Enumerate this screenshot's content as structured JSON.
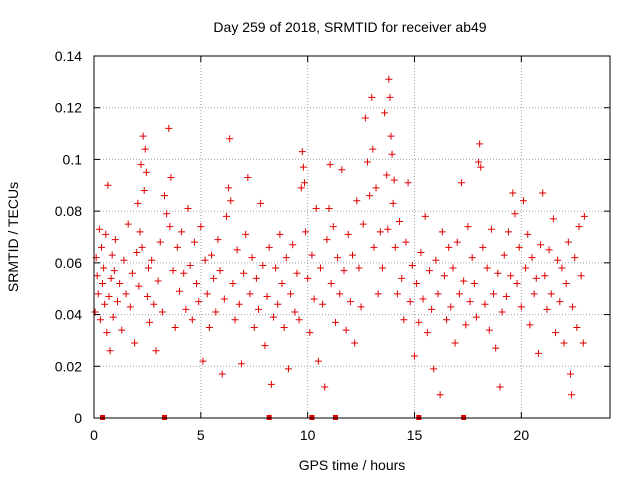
{
  "chart_data": {
    "type": "scatter",
    "title": "Day 259 of 2018, SRMTID for receiver ab49",
    "xlabel": "GPS time / hours",
    "ylabel": "SRMTID / TECUs",
    "xlim": [
      0,
      24.15
    ],
    "ylim": [
      0,
      0.14
    ],
    "grid": true,
    "marker": "+",
    "xticks": [
      0,
      5,
      10,
      15,
      20
    ],
    "xtick_labels": [
      "0",
      "5",
      "10",
      "15",
      "20"
    ],
    "yticks": [
      0,
      0.02,
      0.04,
      0.06,
      0.08,
      0.1,
      0.12,
      0.14
    ],
    "ytick_labels": [
      "0",
      "0.02",
      "0.04",
      "0.06",
      "0.08",
      "0.1",
      "0.12",
      "0.14"
    ],
    "color": "#e00000",
    "series": [
      {
        "name": "SRMTID",
        "points": [
          [
            0.05,
            0.041
          ],
          [
            0.1,
            0.062
          ],
          [
            0.15,
            0.055
          ],
          [
            0.2,
            0.048
          ],
          [
            0.25,
            0.073
          ],
          [
            0.3,
            0.038
          ],
          [
            0.35,
            0.066
          ],
          [
            0.4,
            0.052
          ],
          [
            0.45,
            0.058
          ],
          [
            0.5,
            0.044
          ],
          [
            0.55,
            0.071
          ],
          [
            0.6,
            0.033
          ],
          [
            0.65,
            0.09
          ],
          [
            0.7,
            0.047
          ],
          [
            0.75,
            0.026
          ],
          [
            0.8,
            0.054
          ],
          [
            0.85,
            0.063
          ],
          [
            0.9,
            0.039
          ],
          [
            0.95,
            0.057
          ],
          [
            1.0,
            0.069
          ],
          [
            1.1,
            0.045
          ],
          [
            1.2,
            0.052
          ],
          [
            1.3,
            0.034
          ],
          [
            1.4,
            0.061
          ],
          [
            1.5,
            0.048
          ],
          [
            1.6,
            0.075
          ],
          [
            1.7,
            0.043
          ],
          [
            1.8,
            0.056
          ],
          [
            1.9,
            0.029
          ],
          [
            2.0,
            0.064
          ],
          [
            2.05,
            0.083
          ],
          [
            2.1,
            0.051
          ],
          [
            2.15,
            0.072
          ],
          [
            2.2,
            0.098
          ],
          [
            2.25,
            0.066
          ],
          [
            2.3,
            0.109
          ],
          [
            2.35,
            0.088
          ],
          [
            2.4,
            0.104
          ],
          [
            2.45,
            0.095
          ],
          [
            2.5,
            0.047
          ],
          [
            2.55,
            0.058
          ],
          [
            2.6,
            0.037
          ],
          [
            2.7,
            0.061
          ],
          [
            2.8,
            0.044
          ],
          [
            2.9,
            0.026
          ],
          [
            3.0,
            0.053
          ],
          [
            3.1,
            0.068
          ],
          [
            3.2,
            0.041
          ],
          [
            3.3,
            0.086
          ],
          [
            3.4,
            0.079
          ],
          [
            3.5,
            0.112
          ],
          [
            3.55,
            0.074
          ],
          [
            3.6,
            0.093
          ],
          [
            3.7,
            0.057
          ],
          [
            3.8,
            0.035
          ],
          [
            3.9,
            0.066
          ],
          [
            4.0,
            0.049
          ],
          [
            4.1,
            0.072
          ],
          [
            4.2,
            0.056
          ],
          [
            4.3,
            0.042
          ],
          [
            4.4,
            0.081
          ],
          [
            4.5,
            0.059
          ],
          [
            4.6,
            0.038
          ],
          [
            4.7,
            0.068
          ],
          [
            4.8,
            0.052
          ],
          [
            4.9,
            0.045
          ],
          [
            5.0,
            0.074
          ],
          [
            5.1,
            0.022
          ],
          [
            5.2,
            0.061
          ],
          [
            5.3,
            0.048
          ],
          [
            5.4,
            0.035
          ],
          [
            5.5,
            0.063
          ],
          [
            5.6,
            0.054
          ],
          [
            5.7,
            0.041
          ],
          [
            5.8,
            0.069
          ],
          [
            5.9,
            0.057
          ],
          [
            6.0,
            0.017
          ],
          [
            6.1,
            0.046
          ],
          [
            6.2,
            0.078
          ],
          [
            6.3,
            0.089
          ],
          [
            6.35,
            0.108
          ],
          [
            6.4,
            0.084
          ],
          [
            6.5,
            0.052
          ],
          [
            6.6,
            0.038
          ],
          [
            6.7,
            0.065
          ],
          [
            6.8,
            0.044
          ],
          [
            6.9,
            0.021
          ],
          [
            7.0,
            0.056
          ],
          [
            7.1,
            0.071
          ],
          [
            7.2,
            0.093
          ],
          [
            7.3,
            0.048
          ],
          [
            7.4,
            0.062
          ],
          [
            7.5,
            0.035
          ],
          [
            7.6,
            0.054
          ],
          [
            7.7,
            0.042
          ],
          [
            7.8,
            0.083
          ],
          [
            7.9,
            0.059
          ],
          [
            8.0,
            0.028
          ],
          [
            8.1,
            0.047
          ],
          [
            8.2,
            0.066
          ],
          [
            8.3,
            0.013
          ],
          [
            8.4,
            0.039
          ],
          [
            8.5,
            0.058
          ],
          [
            8.6,
            0.044
          ],
          [
            8.7,
            0.071
          ],
          [
            8.8,
            0.052
          ],
          [
            8.9,
            0.035
          ],
          [
            9.0,
            0.062
          ],
          [
            9.1,
            0.019
          ],
          [
            9.2,
            0.048
          ],
          [
            9.3,
            0.067
          ],
          [
            9.4,
            0.041
          ],
          [
            9.5,
            0.056
          ],
          [
            9.6,
            0.038
          ],
          [
            9.7,
            0.089
          ],
          [
            9.75,
            0.103
          ],
          [
            9.8,
            0.097
          ],
          [
            9.85,
            0.091
          ],
          [
            9.9,
            0.072
          ],
          [
            10.0,
            0.054
          ],
          [
            10.1,
            0.033
          ],
          [
            10.2,
            0.063
          ],
          [
            10.3,
            0.046
          ],
          [
            10.4,
            0.081
          ],
          [
            10.5,
            0.022
          ],
          [
            10.6,
            0.058
          ],
          [
            10.7,
            0.044
          ],
          [
            10.8,
            0.012
          ],
          [
            10.9,
            0.069
          ],
          [
            11.0,
            0.081
          ],
          [
            11.05,
            0.098
          ],
          [
            11.1,
            0.052
          ],
          [
            11.2,
            0.074
          ],
          [
            11.3,
            0.037
          ],
          [
            11.4,
            0.062
          ],
          [
            11.5,
            0.048
          ],
          [
            11.6,
            0.096
          ],
          [
            11.7,
            0.057
          ],
          [
            11.8,
            0.034
          ],
          [
            11.9,
            0.071
          ],
          [
            12.0,
            0.045
          ],
          [
            12.1,
            0.063
          ],
          [
            12.2,
            0.029
          ],
          [
            12.3,
            0.084
          ],
          [
            12.4,
            0.058
          ],
          [
            12.5,
            0.043
          ],
          [
            12.6,
            0.075
          ],
          [
            12.7,
            0.116
          ],
          [
            12.8,
            0.099
          ],
          [
            12.9,
            0.086
          ],
          [
            13.0,
            0.124
          ],
          [
            13.05,
            0.104
          ],
          [
            13.1,
            0.066
          ],
          [
            13.2,
            0.089
          ],
          [
            13.3,
            0.048
          ],
          [
            13.4,
            0.072
          ],
          [
            13.5,
            0.058
          ],
          [
            13.6,
            0.118
          ],
          [
            13.7,
            0.094
          ],
          [
            13.75,
            0.073
          ],
          [
            13.8,
            0.131
          ],
          [
            13.85,
            0.124
          ],
          [
            13.9,
            0.109
          ],
          [
            13.95,
            0.102
          ],
          [
            14.0,
            0.083
          ],
          [
            14.05,
            0.092
          ],
          [
            14.1,
            0.066
          ],
          [
            14.2,
            0.048
          ],
          [
            14.3,
            0.076
          ],
          [
            14.4,
            0.054
          ],
          [
            14.5,
            0.038
          ],
          [
            14.6,
            0.068
          ],
          [
            14.7,
            0.091
          ],
          [
            14.8,
            0.045
          ],
          [
            14.9,
            0.059
          ],
          [
            15.0,
            0.024
          ],
          [
            15.1,
            0.052
          ],
          [
            15.2,
            0.037
          ],
          [
            15.3,
            0.064
          ],
          [
            15.4,
            0.046
          ],
          [
            15.5,
            0.078
          ],
          [
            15.6,
            0.033
          ],
          [
            15.7,
            0.057
          ],
          [
            15.8,
            0.042
          ],
          [
            15.9,
            0.019
          ],
          [
            16.0,
            0.061
          ],
          [
            16.1,
            0.048
          ],
          [
            16.2,
            0.009
          ],
          [
            16.3,
            0.072
          ],
          [
            16.4,
            0.055
          ],
          [
            16.5,
            0.038
          ],
          [
            16.6,
            0.066
          ],
          [
            16.7,
            0.043
          ],
          [
            16.8,
            0.058
          ],
          [
            16.9,
            0.029
          ],
          [
            17.0,
            0.068
          ],
          [
            17.1,
            0.048
          ],
          [
            17.2,
            0.091
          ],
          [
            17.3,
            0.053
          ],
          [
            17.4,
            0.036
          ],
          [
            17.5,
            0.074
          ],
          [
            17.6,
            0.045
          ],
          [
            17.7,
            0.062
          ],
          [
            17.8,
            0.052
          ],
          [
            17.9,
            0.039
          ],
          [
            18.0,
            0.099
          ],
          [
            18.05,
            0.106
          ],
          [
            18.1,
            0.097
          ],
          [
            18.2,
            0.066
          ],
          [
            18.3,
            0.044
          ],
          [
            18.4,
            0.058
          ],
          [
            18.5,
            0.034
          ],
          [
            18.6,
            0.073
          ],
          [
            18.7,
            0.048
          ],
          [
            18.8,
            0.027
          ],
          [
            18.9,
            0.056
          ],
          [
            19.0,
            0.012
          ],
          [
            19.1,
            0.041
          ],
          [
            19.2,
            0.063
          ],
          [
            19.3,
            0.047
          ],
          [
            19.4,
            0.072
          ],
          [
            19.5,
            0.055
          ],
          [
            19.6,
            0.087
          ],
          [
            19.7,
            0.079
          ],
          [
            19.8,
            0.052
          ],
          [
            19.9,
            0.066
          ],
          [
            20.0,
            0.043
          ],
          [
            20.1,
            0.084
          ],
          [
            20.2,
            0.058
          ],
          [
            20.3,
            0.071
          ],
          [
            20.4,
            0.036
          ],
          [
            20.5,
            0.062
          ],
          [
            20.6,
            0.048
          ],
          [
            20.7,
            0.054
          ],
          [
            20.8,
            0.025
          ],
          [
            20.9,
            0.067
          ],
          [
            21.0,
            0.087
          ],
          [
            21.1,
            0.055
          ],
          [
            21.2,
            0.042
          ],
          [
            21.3,
            0.065
          ],
          [
            21.4,
            0.048
          ],
          [
            21.5,
            0.077
          ],
          [
            21.6,
            0.033
          ],
          [
            21.7,
            0.061
          ],
          [
            21.8,
            0.045
          ],
          [
            21.9,
            0.058
          ],
          [
            22.0,
            0.029
          ],
          [
            22.1,
            0.052
          ],
          [
            22.2,
            0.068
          ],
          [
            22.3,
            0.017
          ],
          [
            22.35,
            0.009
          ],
          [
            22.4,
            0.043
          ],
          [
            22.5,
            0.062
          ],
          [
            22.6,
            0.035
          ],
          [
            22.7,
            0.074
          ],
          [
            22.8,
            0.055
          ],
          [
            22.9,
            0.029
          ],
          [
            22.95,
            0.078
          ]
        ]
      },
      {
        "name": "baseline markers",
        "points": [
          [
            0.4,
            0
          ],
          [
            3.3,
            0
          ],
          [
            8.2,
            0
          ],
          [
            10.2,
            0
          ],
          [
            11.3,
            0
          ],
          [
            15.2,
            0
          ],
          [
            17.3,
            0
          ]
        ]
      }
    ]
  }
}
